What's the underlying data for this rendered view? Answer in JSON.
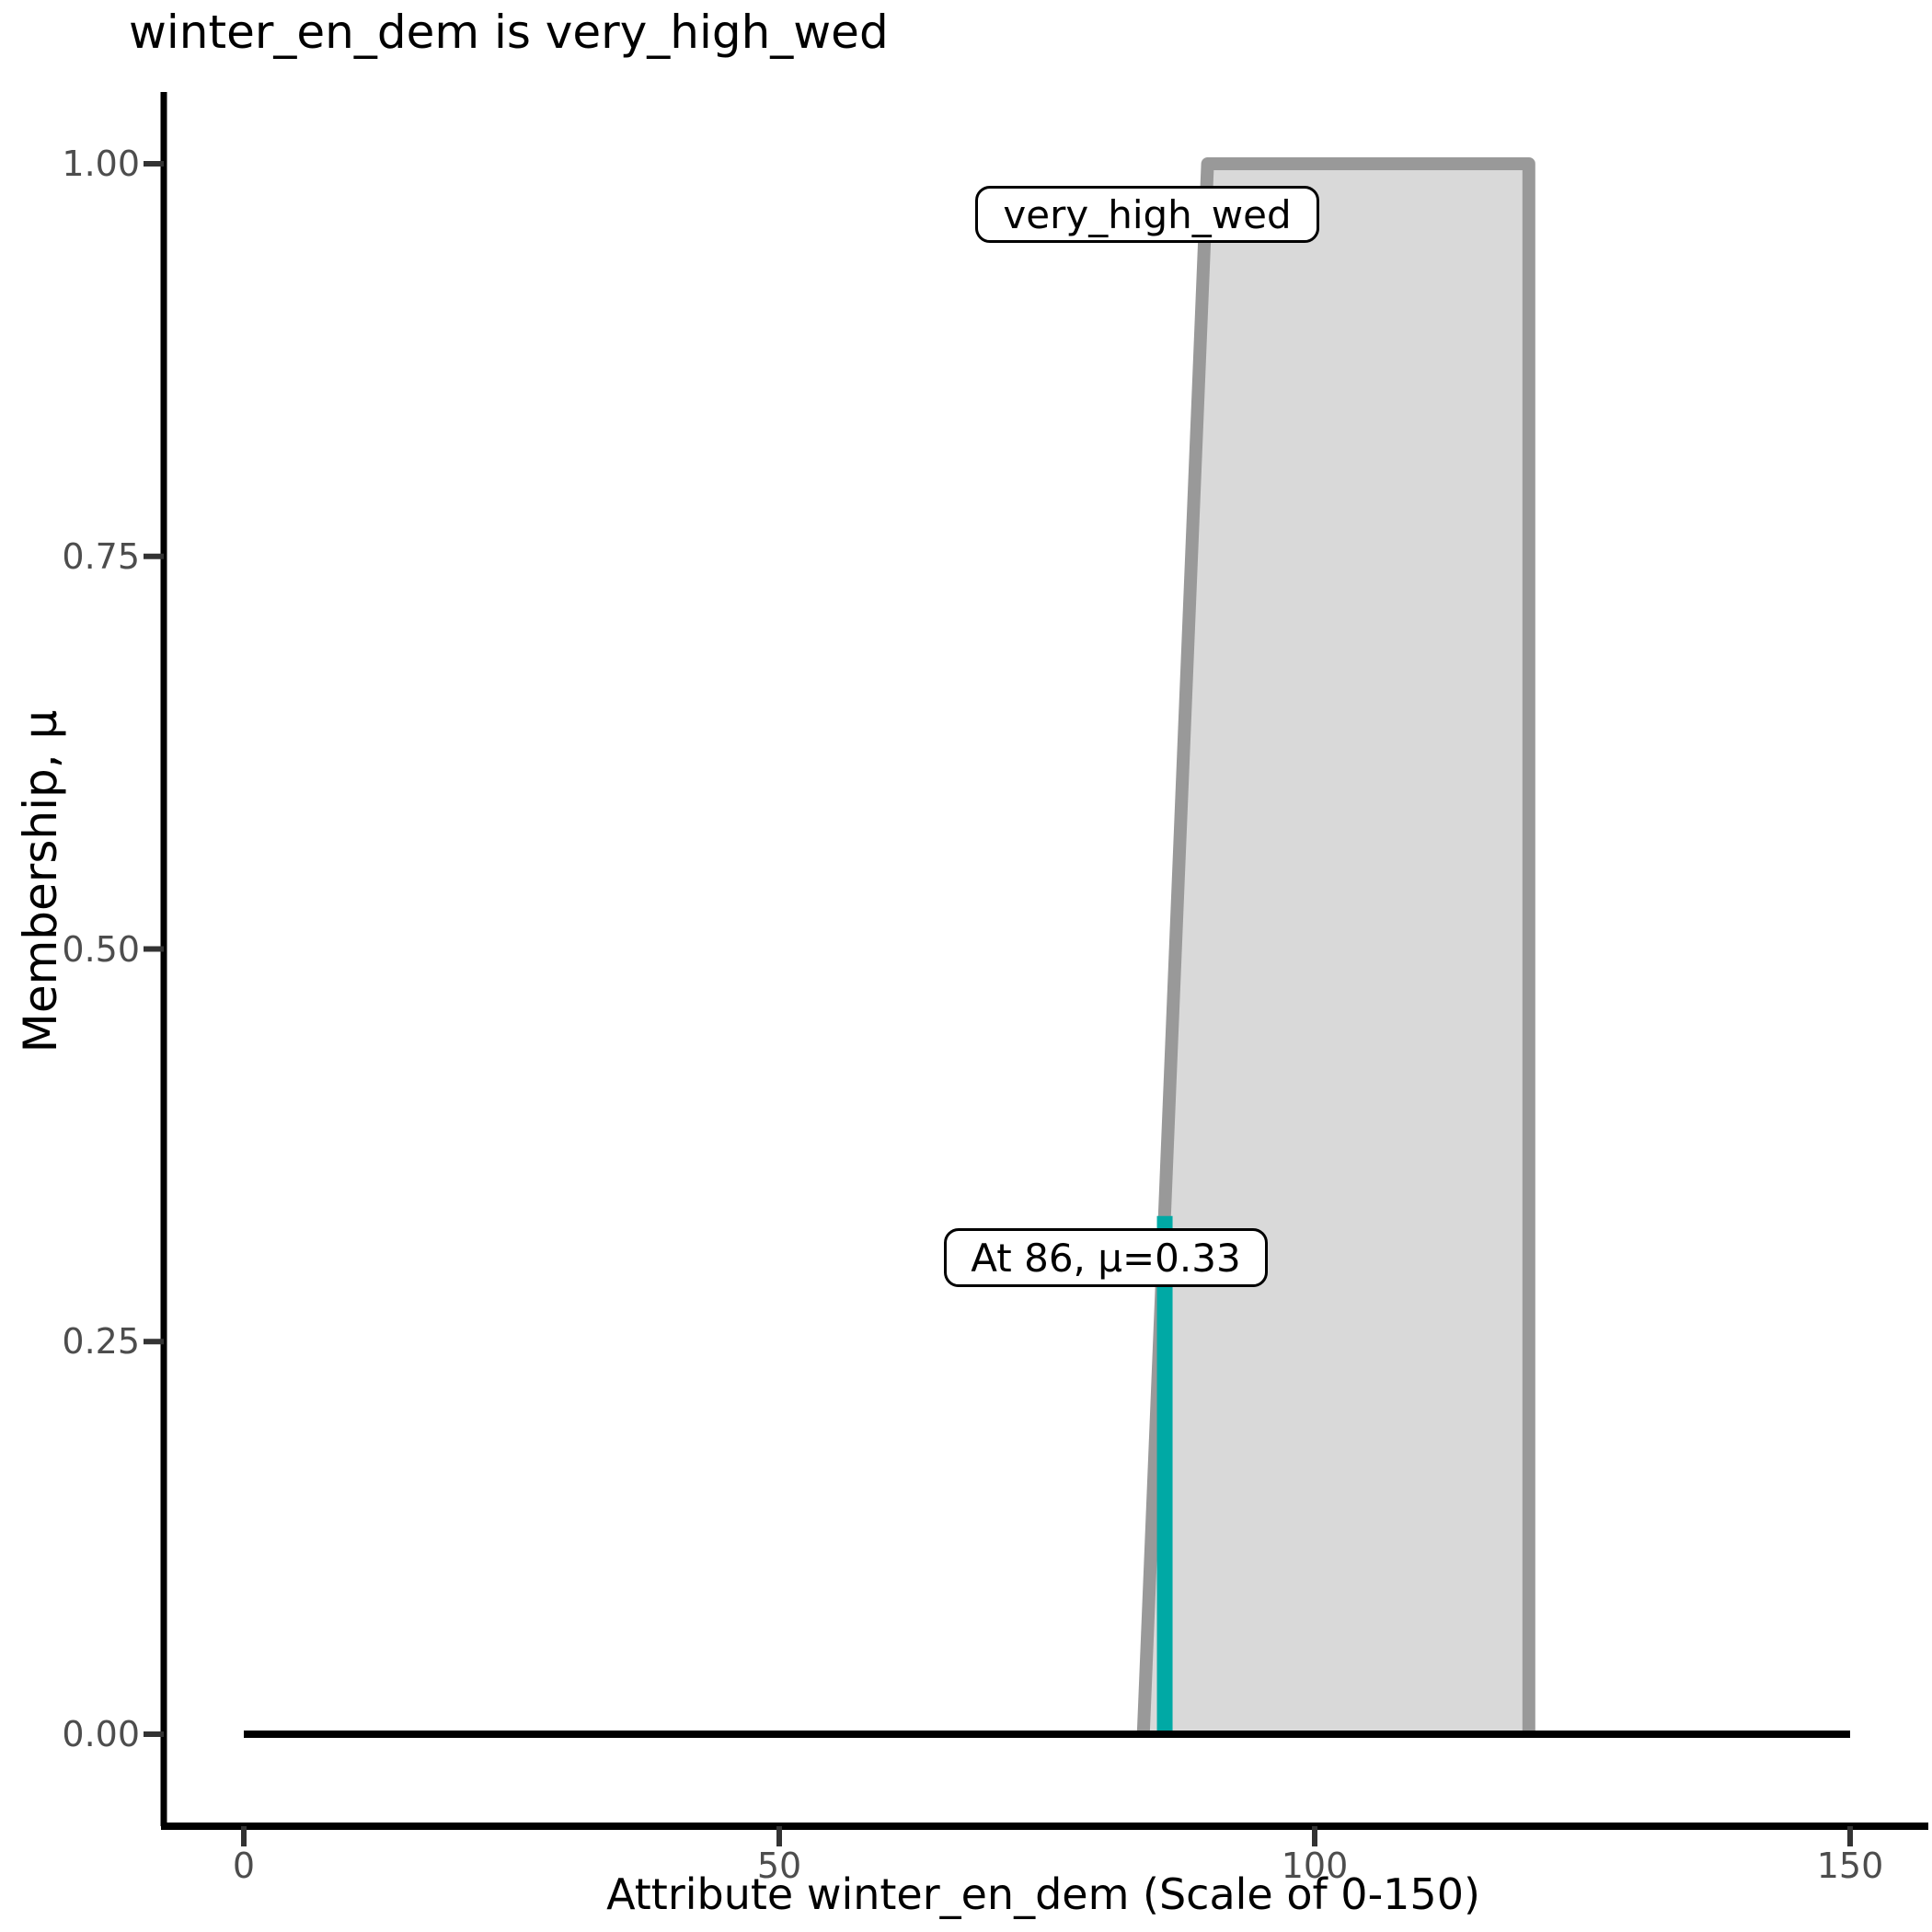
{
  "title": "winter_en_dem is very_high_wed",
  "axes": {
    "x_label": "Attribute winter_en_dem (Scale of 0-150)",
    "y_label": "Membership, μ",
    "x_tick_labels": [
      "0",
      "50",
      "100",
      "150"
    ],
    "y_tick_labels": [
      "0.00",
      "0.25",
      "0.50",
      "0.75",
      "1.00"
    ]
  },
  "annotations": {
    "set_label": "very_high_wed",
    "value_label": "At 86, μ=0.33"
  },
  "colors": {
    "membership_fill": "#d9d9d9",
    "membership_outline": "#999999",
    "cut_line": "#00a9a5",
    "baseline": "#000000",
    "spine": "#000000",
    "tick": "#333333",
    "tick_text": "#4d4d4d",
    "title_text": "#000000"
  },
  "chart_data": {
    "type": "area",
    "title": "winter_en_dem is very_high_wed",
    "xlabel": "Attribute winter_en_dem (Scale of 0-150)",
    "ylabel": "Membership, μ",
    "xlim": [
      0,
      150
    ],
    "ylim": [
      0,
      1
    ],
    "x_ticks": [
      0,
      50,
      100,
      150
    ],
    "y_ticks": [
      0.0,
      0.25,
      0.5,
      0.75,
      1.0
    ],
    "grid": false,
    "legend": false,
    "series": [
      {
        "name": "very_high_wed",
        "kind": "trapezoid-membership-function",
        "trapezoid": [
          84,
          90,
          120,
          120
        ],
        "x": [
          0,
          84,
          90,
          120,
          120,
          150
        ],
        "y": [
          0,
          0,
          1,
          1,
          0,
          0
        ]
      },
      {
        "name": "input-cut",
        "kind": "vertical-cut-line",
        "input_value": 86,
        "membership": 0.33,
        "x": [
          86,
          86
        ],
        "y": [
          0,
          0.33
        ]
      }
    ],
    "annotations": [
      {
        "text": "very_high_wed",
        "anchor_x": 90,
        "anchor_y": 1.0
      },
      {
        "text": "At 86, μ=0.33",
        "anchor_x": 86,
        "anchor_y": 0.33
      }
    ]
  }
}
